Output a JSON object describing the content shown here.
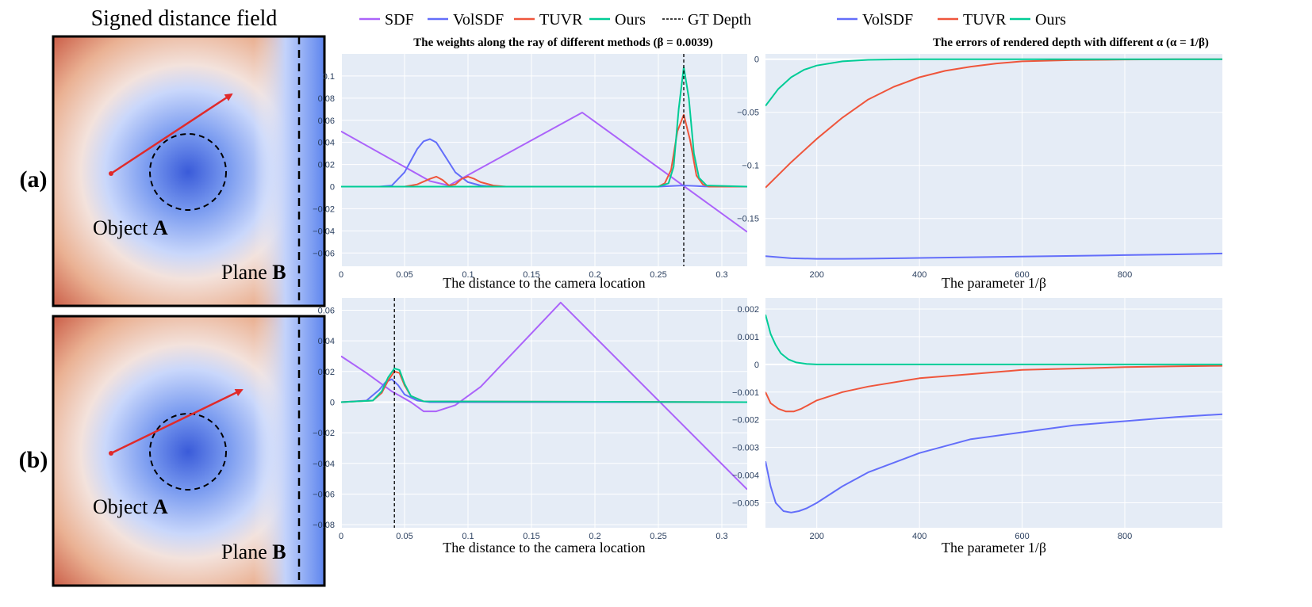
{
  "sdf_panel": {
    "title": "Signed distance field",
    "row_labels": [
      "(a)",
      "(b)"
    ],
    "object_label": "Object",
    "object_letter": "A",
    "plane_label": "Plane",
    "plane_letter": "B"
  },
  "colors": {
    "SDF": "#ab63fa",
    "VolSDF": "#636efa",
    "TUVR": "#ef553b",
    "Ours": "#00cc96",
    "GT Depth": "#000000",
    "plot_bg": "#e5ecf6",
    "ray": "#e02a2a"
  },
  "legend_left": {
    "items": [
      {
        "name": "SDF",
        "style": "solid"
      },
      {
        "name": "VolSDF",
        "style": "solid"
      },
      {
        "name": "TUVR",
        "style": "solid"
      },
      {
        "name": "Ours",
        "style": "solid"
      },
      {
        "name": "GT Depth",
        "style": "dashed"
      }
    ]
  },
  "legend_right": {
    "items": [
      {
        "name": "VolSDF"
      },
      {
        "name": "TUVR"
      },
      {
        "name": "Ours"
      }
    ]
  },
  "titles": {
    "weights": "The weights along the ray of different methods (β = 0.0039)",
    "errors": "The errors of rendered depth with different α (α = 1/β)"
  },
  "chart_data": [
    {
      "id": "weights_a",
      "type": "line",
      "title": "The weights along the ray of different methods (β = 0.0039)",
      "xlabel": "The distance to the camera location",
      "xlim": [
        0,
        0.32
      ],
      "ylim": [
        -0.072,
        0.12
      ],
      "xticks": [
        0,
        0.05,
        0.1,
        0.15,
        0.2,
        0.25,
        0.3
      ],
      "xtick_labels": [
        "0",
        "0.05",
        "0.1",
        "0.15",
        "0.2",
        "0.25",
        "0.3"
      ],
      "yticks": [
        -0.06,
        -0.04,
        -0.02,
        0,
        0.02,
        0.04,
        0.06,
        0.08,
        0.1
      ],
      "ytick_labels": [
        "−0.06",
        "−0.04",
        "−0.02",
        "0",
        "0.02",
        "0.04",
        "0.06",
        "0.08",
        "0.1"
      ],
      "gt_depth": 0.27,
      "series": [
        {
          "name": "SDF",
          "x": [
            0,
            0.07,
            0.085,
            0.19,
            0.32
          ],
          "y": [
            0.05,
            0.005,
            0.001,
            0.067,
            -0.041
          ]
        },
        {
          "name": "VolSDF",
          "x": [
            0,
            0.03,
            0.04,
            0.05,
            0.06,
            0.065,
            0.07,
            0.075,
            0.08,
            0.09,
            0.1,
            0.11,
            0.12,
            0.15,
            0.25,
            0.26,
            0.27,
            0.28,
            0.29,
            0.32
          ],
          "y": [
            0,
            0,
            0.001,
            0.013,
            0.034,
            0.041,
            0.043,
            0.04,
            0.031,
            0.013,
            0.004,
            0.001,
            0,
            0,
            0,
            0.0005,
            0.001,
            0.0005,
            0,
            0
          ]
        },
        {
          "name": "TUVR",
          "x": [
            0,
            0.05,
            0.06,
            0.07,
            0.075,
            0.08,
            0.085,
            0.09,
            0.095,
            0.1,
            0.105,
            0.11,
            0.12,
            0.13,
            0.25,
            0.255,
            0.26,
            0.265,
            0.27,
            0.275,
            0.28,
            0.285,
            0.29,
            0.32
          ],
          "y": [
            0,
            0,
            0.002,
            0.007,
            0.009,
            0.006,
            0.001,
            0.002,
            0.007,
            0.009,
            0.007,
            0.004,
            0.001,
            0,
            0,
            0.003,
            0.015,
            0.05,
            0.065,
            0.042,
            0.01,
            0.002,
            0,
            0
          ]
        },
        {
          "name": "Ours",
          "x": [
            0,
            0.25,
            0.258,
            0.262,
            0.266,
            0.27,
            0.274,
            0.278,
            0.282,
            0.288,
            0.32
          ],
          "y": [
            0,
            0,
            0.003,
            0.018,
            0.07,
            0.108,
            0.08,
            0.03,
            0.008,
            0.001,
            0
          ]
        }
      ]
    },
    {
      "id": "errors_a",
      "type": "line",
      "title": "The errors of rendered depth with different α (α = 1/β)",
      "xlabel": "The parameter 1/β",
      "xlim": [
        100,
        990
      ],
      "ylim": [
        -0.195,
        0.005
      ],
      "xticks": [
        200,
        400,
        600,
        800
      ],
      "xtick_labels": [
        "200",
        "400",
        "600",
        "800"
      ],
      "yticks": [
        -0.15,
        -0.1,
        -0.05,
        0
      ],
      "ytick_labels": [
        "−0.15",
        "−0.1",
        "−0.05",
        "0"
      ],
      "series": [
        {
          "name": "VolSDF",
          "x": [
            100,
            150,
            200,
            250,
            300,
            400,
            500,
            600,
            700,
            800,
            900,
            990
          ],
          "y": [
            -0.1855,
            -0.1875,
            -0.188,
            -0.188,
            -0.1878,
            -0.1872,
            -0.1865,
            -0.1858,
            -0.1852,
            -0.1845,
            -0.1838,
            -0.183
          ]
        },
        {
          "name": "TUVR",
          "x": [
            100,
            150,
            200,
            250,
            300,
            350,
            400,
            450,
            500,
            550,
            600,
            700,
            800,
            900,
            990
          ],
          "y": [
            -0.121,
            -0.097,
            -0.075,
            -0.055,
            -0.038,
            -0.026,
            -0.017,
            -0.011,
            -0.007,
            -0.004,
            -0.002,
            -0.0008,
            -0.0003,
            -0.0001,
            0
          ]
        },
        {
          "name": "Ours",
          "x": [
            100,
            125,
            150,
            175,
            200,
            250,
            300,
            350,
            400,
            600,
            800,
            990
          ],
          "y": [
            -0.044,
            -0.028,
            -0.017,
            -0.01,
            -0.006,
            -0.002,
            -0.0006,
            -0.0002,
            0,
            0,
            0,
            0
          ]
        }
      ]
    },
    {
      "id": "weights_b",
      "type": "line",
      "xlabel": "The distance to the camera location",
      "xlim": [
        0,
        0.32
      ],
      "ylim": [
        -0.082,
        0.068
      ],
      "xticks": [
        0,
        0.05,
        0.1,
        0.15,
        0.2,
        0.25,
        0.3
      ],
      "xtick_labels": [
        "0",
        "0.05",
        "0.1",
        "0.15",
        "0.2",
        "0.25",
        "0.3"
      ],
      "yticks": [
        -0.08,
        -0.06,
        -0.04,
        -0.02,
        0,
        0.02,
        0.04,
        0.06
      ],
      "ytick_labels": [
        "−0.08",
        "−0.06",
        "−0.04",
        "−0.02",
        "0",
        "0.02",
        "0.04",
        "0.06"
      ],
      "gt_depth": 0.042,
      "series": [
        {
          "name": "SDF",
          "x": [
            0,
            0.02,
            0.04,
            0.055,
            0.065,
            0.075,
            0.09,
            0.11,
            0.173,
            0.32
          ],
          "y": [
            0.03,
            0.019,
            0.007,
            0.0,
            -0.006,
            -0.006,
            -0.002,
            0.01,
            0.065,
            -0.057
          ]
        },
        {
          "name": "VolSDF",
          "x": [
            0,
            0.02,
            0.03,
            0.035,
            0.04,
            0.045,
            0.05,
            0.06,
            0.07,
            0.32
          ],
          "y": [
            0,
            0.001,
            0.008,
            0.013,
            0.015,
            0.011,
            0.005,
            0.001,
            0,
            0
          ]
        },
        {
          "name": "TUVR",
          "x": [
            0,
            0.025,
            0.032,
            0.037,
            0.042,
            0.046,
            0.05,
            0.055,
            0.065,
            0.32
          ],
          "y": [
            0,
            0.001,
            0.006,
            0.014,
            0.02,
            0.019,
            0.011,
            0.004,
            0.0005,
            0
          ]
        },
        {
          "name": "Ours",
          "x": [
            0,
            0.025,
            0.032,
            0.037,
            0.042,
            0.046,
            0.05,
            0.055,
            0.065,
            0.32
          ],
          "y": [
            0,
            0.001,
            0.007,
            0.016,
            0.022,
            0.021,
            0.012,
            0.004,
            0.0005,
            0
          ]
        }
      ]
    },
    {
      "id": "errors_b",
      "type": "line",
      "xlabel": "The parameter 1/β",
      "xlim": [
        100,
        990
      ],
      "ylim": [
        -0.0059,
        0.0024
      ],
      "xticks": [
        200,
        400,
        600,
        800
      ],
      "xtick_labels": [
        "200",
        "400",
        "600",
        "800"
      ],
      "yticks": [
        -0.005,
        -0.004,
        -0.003,
        -0.002,
        -0.001,
        0,
        0.001,
        0.002
      ],
      "ytick_labels": [
        "−0.005",
        "−0.004",
        "−0.003",
        "−0.002",
        "−0.001",
        "0",
        "0.001",
        "0.002"
      ],
      "series": [
        {
          "name": "VolSDF",
          "x": [
            100,
            110,
            120,
            135,
            150,
            165,
            180,
            200,
            250,
            300,
            400,
            500,
            600,
            700,
            800,
            900,
            990
          ],
          "y": [
            -0.0035,
            -0.0044,
            -0.005,
            -0.0053,
            -0.00535,
            -0.0053,
            -0.0052,
            -0.005,
            -0.0044,
            -0.0039,
            -0.0032,
            -0.0027,
            -0.00245,
            -0.0022,
            -0.00205,
            -0.0019,
            -0.0018
          ]
        },
        {
          "name": "TUVR",
          "x": [
            100,
            110,
            125,
            140,
            155,
            170,
            200,
            250,
            300,
            400,
            500,
            600,
            700,
            800,
            900,
            990
          ],
          "y": [
            -0.001,
            -0.0014,
            -0.0016,
            -0.0017,
            -0.0017,
            -0.0016,
            -0.0013,
            -0.001,
            -0.0008,
            -0.0005,
            -0.00035,
            -0.0002,
            -0.00015,
            -0.0001,
            -7e-05,
            -5e-05
          ]
        },
        {
          "name": "Ours",
          "x": [
            100,
            110,
            120,
            130,
            145,
            160,
            180,
            200,
            250,
            300,
            400,
            600,
            800,
            990
          ],
          "y": [
            0.0018,
            0.0011,
            0.0007,
            0.0004,
            0.00018,
            7e-05,
            2e-05,
            0,
            0,
            0,
            0,
            0,
            0,
            0
          ]
        }
      ]
    }
  ]
}
